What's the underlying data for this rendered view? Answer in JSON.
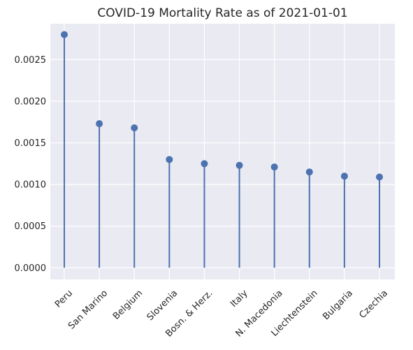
{
  "chart_data": {
    "type": "lollipop",
    "title": "COVID-19 Mortality Rate as of 2021-01-01",
    "xlabel": "",
    "ylabel": "",
    "categories": [
      "Peru",
      "San Marino",
      "Belgium",
      "Slovenia",
      "Bosn. & Herz.",
      "Italy",
      "N. Macedonia",
      "Liechtenstein",
      "Bulgaria",
      "Czechia"
    ],
    "values": [
      0.0028,
      0.00173,
      0.00168,
      0.0013,
      0.00125,
      0.00123,
      0.00121,
      0.00115,
      0.0011,
      0.00109
    ],
    "ylim": [
      -0.00014,
      0.00293
    ],
    "yticks": [
      0.0,
      0.0005,
      0.001,
      0.0015,
      0.002,
      0.0025
    ],
    "ytick_labels": [
      "0.0000",
      "0.0005",
      "0.0010",
      "0.0015",
      "0.0020",
      "0.0025"
    ],
    "grid": true,
    "legend": "none"
  },
  "colors": {
    "plot_background": "#eaeaf2",
    "grid": "#ffffff",
    "marker": "#4c72b0",
    "stem": "#4c72b0",
    "text": "#262626"
  }
}
